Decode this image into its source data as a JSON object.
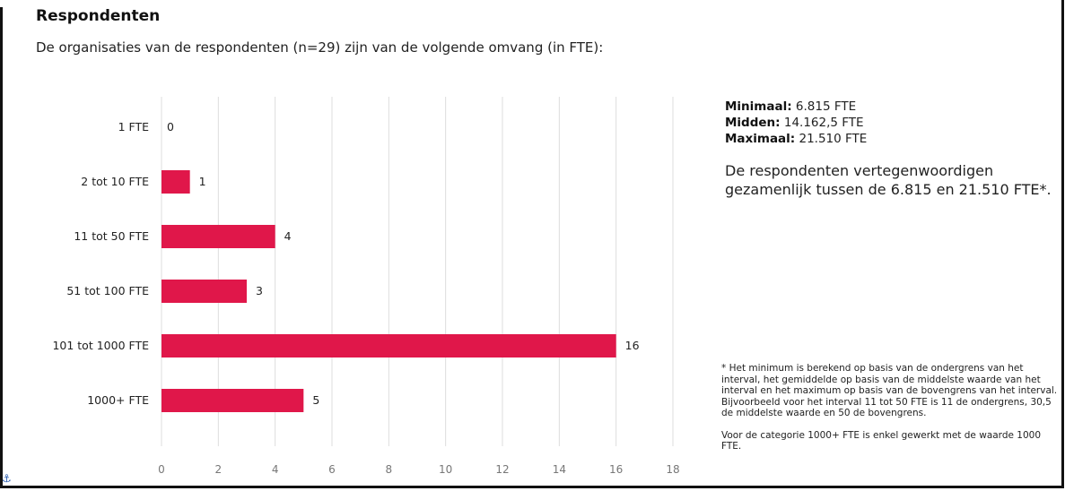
{
  "header": {
    "title": "Respondenten",
    "subtitle": "De organisaties van de respondenten (n=29) zijn van de volgende omvang (in FTE):"
  },
  "chart_data": {
    "type": "bar",
    "orientation": "horizontal",
    "categories": [
      "1 FTE",
      "2 tot 10 FTE",
      "11 tot 50 FTE",
      "51 tot 100 FTE",
      "101 tot 1000 FTE",
      "1000+ FTE"
    ],
    "values": [
      0,
      1,
      4,
      3,
      16,
      5
    ],
    "data_labels": [
      "0",
      "1",
      "4",
      "3",
      "16",
      "5"
    ],
    "xlim": [
      0,
      18
    ],
    "xticks": [
      0,
      2,
      4,
      6,
      8,
      10,
      12,
      14,
      16,
      18
    ],
    "grid": true,
    "bar_color": "#e0174a",
    "grid_color": "#dddddd"
  },
  "stats": {
    "min_label": "Minimaal:",
    "min_value": "6.815 FTE",
    "mid_label": "Midden:",
    "mid_value": "14.162,5 FTE",
    "max_label": "Maximaal:",
    "max_value": "21.510 FTE"
  },
  "summary": "De respondenten vertegenwoordigen gezamenlijk tussen de 6.815 en 21.510 FTE*.",
  "footnote": {
    "line1": "* Het minimum is berekend op basis van de ondergrens van het interval, het gemiddelde op basis van de middelste waarde van het interval en het maximum op basis van de bovengrens van het interval.",
    "line2": "Bijvoorbeeld voor het interval 11 tot 50 FTE is 11 de ondergrens, 30,5 de middelste waarde en 50 de bovengrens.",
    "line3": "Voor de categorie 1000+ FTE is enkel gewerkt met de waarde 1000 FTE."
  },
  "icons": {
    "anchor": "anchor-icon"
  }
}
